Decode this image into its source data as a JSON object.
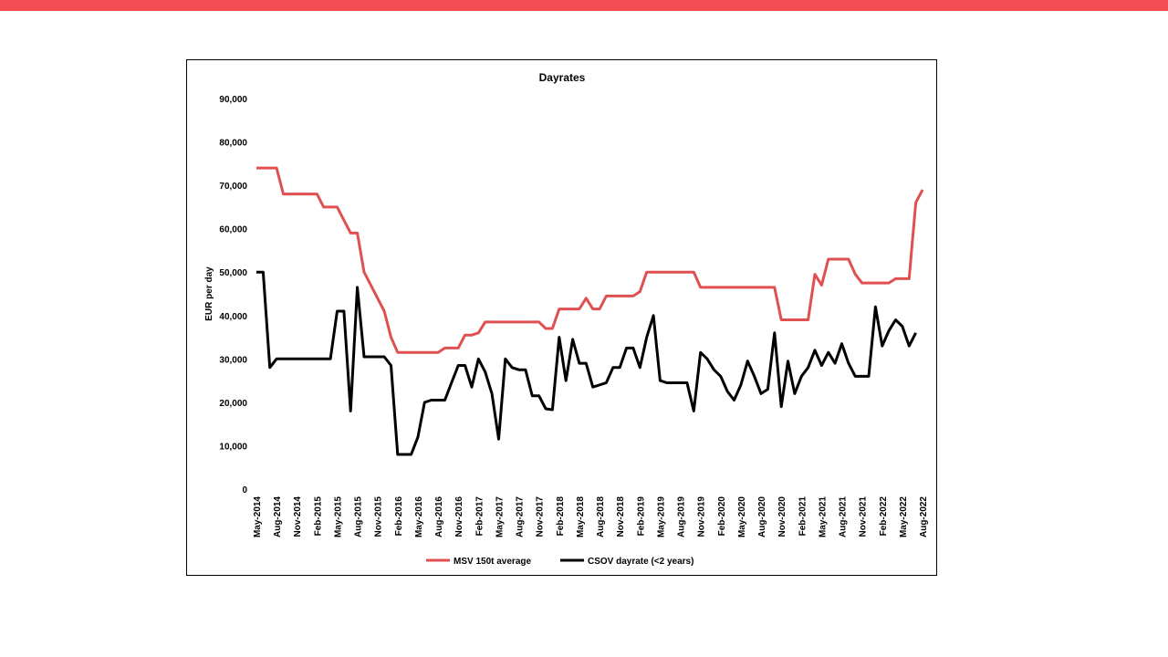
{
  "colors": {
    "accent_bar": "#f44e54",
    "msv": "#e05050",
    "csov": "#000000"
  },
  "chart_data": {
    "type": "line",
    "title": "Dayrates",
    "ylabel": "EUR per day",
    "xlabel": "",
    "ylim": [
      0,
      90000
    ],
    "y_ticks": [
      "0",
      "10,000",
      "20,000",
      "30,000",
      "40,000",
      "50,000",
      "60,000",
      "70,000",
      "80,000",
      "90,000"
    ],
    "y_tick_values": [
      0,
      10000,
      20000,
      30000,
      40000,
      50000,
      60000,
      70000,
      80000,
      90000
    ],
    "x_ticks": [
      "May-2014",
      "Aug-2014",
      "Nov-2014",
      "Feb-2015",
      "May-2015",
      "Aug-2015",
      "Nov-2015",
      "Feb-2016",
      "May-2016",
      "Aug-2016",
      "Nov-2016",
      "Feb-2017",
      "May-2017",
      "Aug-2017",
      "Nov-2017",
      "Feb-2018",
      "May-2018",
      "Aug-2018",
      "Nov-2018",
      "Feb-2019",
      "May-2019",
      "Aug-2019",
      "Nov-2019",
      "Feb-2020",
      "May-2020",
      "Aug-2020",
      "Nov-2020",
      "Feb-2021",
      "May-2021",
      "Aug-2021",
      "Nov-2021",
      "Feb-2022",
      "May-2022",
      "Aug-2022"
    ],
    "grid": false,
    "legend_position": "bottom",
    "series": [
      {
        "name": "MSV 150t average",
        "points": [
          [
            "May-2014",
            74000
          ],
          [
            "Aug-2014",
            74000
          ],
          [
            "Sep-2014",
            68000
          ],
          [
            "Feb-2015",
            68000
          ],
          [
            "Mar-2015",
            65000
          ],
          [
            "May-2015",
            65000
          ],
          [
            "Jul-2015",
            59000
          ],
          [
            "Aug-2015",
            59000
          ],
          [
            "Sep-2015",
            50000
          ],
          [
            "Dec-2015",
            41000
          ],
          [
            "Jan-2016",
            35000
          ],
          [
            "Feb-2016",
            31500
          ],
          [
            "Aug-2016",
            31500
          ],
          [
            "Sep-2016",
            32500
          ],
          [
            "Nov-2016",
            32500
          ],
          [
            "Dec-2016",
            35500
          ],
          [
            "Jan-2017",
            35500
          ],
          [
            "Feb-2017",
            36000
          ],
          [
            "Mar-2017",
            38500
          ],
          [
            "Nov-2017",
            38500
          ],
          [
            "Dec-2017",
            37000
          ],
          [
            "Jan-2018",
            37000
          ],
          [
            "Feb-2018",
            41500
          ],
          [
            "May-2018",
            41500
          ],
          [
            "Jun-2018",
            44000
          ],
          [
            "Jul-2018",
            41500
          ],
          [
            "Aug-2018",
            41500
          ],
          [
            "Sep-2018",
            44500
          ],
          [
            "Jan-2019",
            44500
          ],
          [
            "Feb-2019",
            45500
          ],
          [
            "Mar-2019",
            50000
          ],
          [
            "Oct-2019",
            50000
          ],
          [
            "Nov-2019",
            46500
          ],
          [
            "Oct-2020",
            46500
          ],
          [
            "Nov-2020",
            39000
          ],
          [
            "Mar-2021",
            39000
          ],
          [
            "Apr-2021",
            49500
          ],
          [
            "May-2021",
            47000
          ],
          [
            "Jun-2021",
            53000
          ],
          [
            "Sep-2021",
            53000
          ],
          [
            "Oct-2021",
            49500
          ],
          [
            "Nov-2021",
            47500
          ],
          [
            "Mar-2022",
            47500
          ],
          [
            "Apr-2022",
            48500
          ],
          [
            "Jun-2022",
            48500
          ],
          [
            "Jul-2022",
            66000
          ],
          [
            "Aug-2022",
            69000
          ]
        ]
      },
      {
        "name": "CSOV dayrate (<2 years)",
        "points": [
          [
            "May-2014",
            50000
          ],
          [
            "Jun-2014",
            50000
          ],
          [
            "Jul-2014",
            28000
          ],
          [
            "Aug-2014",
            30000
          ],
          [
            "Apr-2015",
            30000
          ],
          [
            "May-2015",
            41000
          ],
          [
            "Jun-2015",
            41000
          ],
          [
            "Jul-2015",
            18000
          ],
          [
            "Aug-2015",
            46500
          ],
          [
            "Sep-2015",
            30500
          ],
          [
            "Dec-2015",
            30500
          ],
          [
            "Jan-2016",
            28500
          ],
          [
            "Feb-2016",
            8000
          ],
          [
            "Apr-2016",
            8000
          ],
          [
            "May-2016",
            12000
          ],
          [
            "Jun-2016",
            20000
          ],
          [
            "Jul-2016",
            20500
          ],
          [
            "Sep-2016",
            20500
          ],
          [
            "Oct-2016",
            24500
          ],
          [
            "Nov-2016",
            28500
          ],
          [
            "Dec-2016",
            28500
          ],
          [
            "Jan-2017",
            23500
          ],
          [
            "Feb-2017",
            30000
          ],
          [
            "Mar-2017",
            27000
          ],
          [
            "Apr-2017",
            22000
          ],
          [
            "May-2017",
            11500
          ],
          [
            "Jun-2017",
            30000
          ],
          [
            "Jul-2017",
            28000
          ],
          [
            "Aug-2017",
            27500
          ],
          [
            "Sep-2017",
            27500
          ],
          [
            "Oct-2017",
            21500
          ],
          [
            "Nov-2017",
            21500
          ],
          [
            "Dec-2017",
            18500
          ],
          [
            "Jan-2018",
            18300
          ],
          [
            "Feb-2018",
            35000
          ],
          [
            "Mar-2018",
            25000
          ],
          [
            "Apr-2018",
            34500
          ],
          [
            "May-2018",
            29000
          ],
          [
            "Jun-2018",
            29000
          ],
          [
            "Jul-2018",
            23500
          ],
          [
            "Sep-2018",
            24500
          ],
          [
            "Oct-2018",
            28000
          ],
          [
            "Nov-2018",
            28000
          ],
          [
            "Dec-2018",
            32500
          ],
          [
            "Jan-2019",
            32500
          ],
          [
            "Feb-2019",
            28000
          ],
          [
            "Mar-2019",
            35000
          ],
          [
            "Apr-2019",
            40000
          ],
          [
            "May-2019",
            25000
          ],
          [
            "Jun-2019",
            24500
          ],
          [
            "Sep-2019",
            24500
          ],
          [
            "Oct-2019",
            18000
          ],
          [
            "Nov-2019",
            31500
          ],
          [
            "Dec-2019",
            30000
          ],
          [
            "Jan-2020",
            27500
          ],
          [
            "Feb-2020",
            26000
          ],
          [
            "Mar-2020",
            22500
          ],
          [
            "Apr-2020",
            20500
          ],
          [
            "May-2020",
            24000
          ],
          [
            "Jun-2020",
            29500
          ],
          [
            "Jul-2020",
            26000
          ],
          [
            "Aug-2020",
            22000
          ],
          [
            "Sep-2020",
            23000
          ],
          [
            "Oct-2020",
            36000
          ],
          [
            "Nov-2020",
            19000
          ],
          [
            "Dec-2020",
            29500
          ],
          [
            "Jan-2021",
            22000
          ],
          [
            "Feb-2021",
            26000
          ],
          [
            "Mar-2021",
            28000
          ],
          [
            "Apr-2021",
            32000
          ],
          [
            "May-2021",
            28500
          ],
          [
            "Jun-2021",
            31500
          ],
          [
            "Jul-2021",
            29000
          ],
          [
            "Aug-2021",
            33500
          ],
          [
            "Sep-2021",
            29000
          ],
          [
            "Oct-2021",
            26000
          ],
          [
            "Dec-2021",
            26000
          ],
          [
            "Jan-2022",
            42000
          ],
          [
            "Feb-2022",
            33000
          ],
          [
            "Mar-2022",
            36500
          ],
          [
            "Apr-2022",
            39000
          ],
          [
            "May-2022",
            37500
          ],
          [
            "Jun-2022",
            33000
          ],
          [
            "Jul-2022",
            36000
          ]
        ]
      }
    ]
  }
}
